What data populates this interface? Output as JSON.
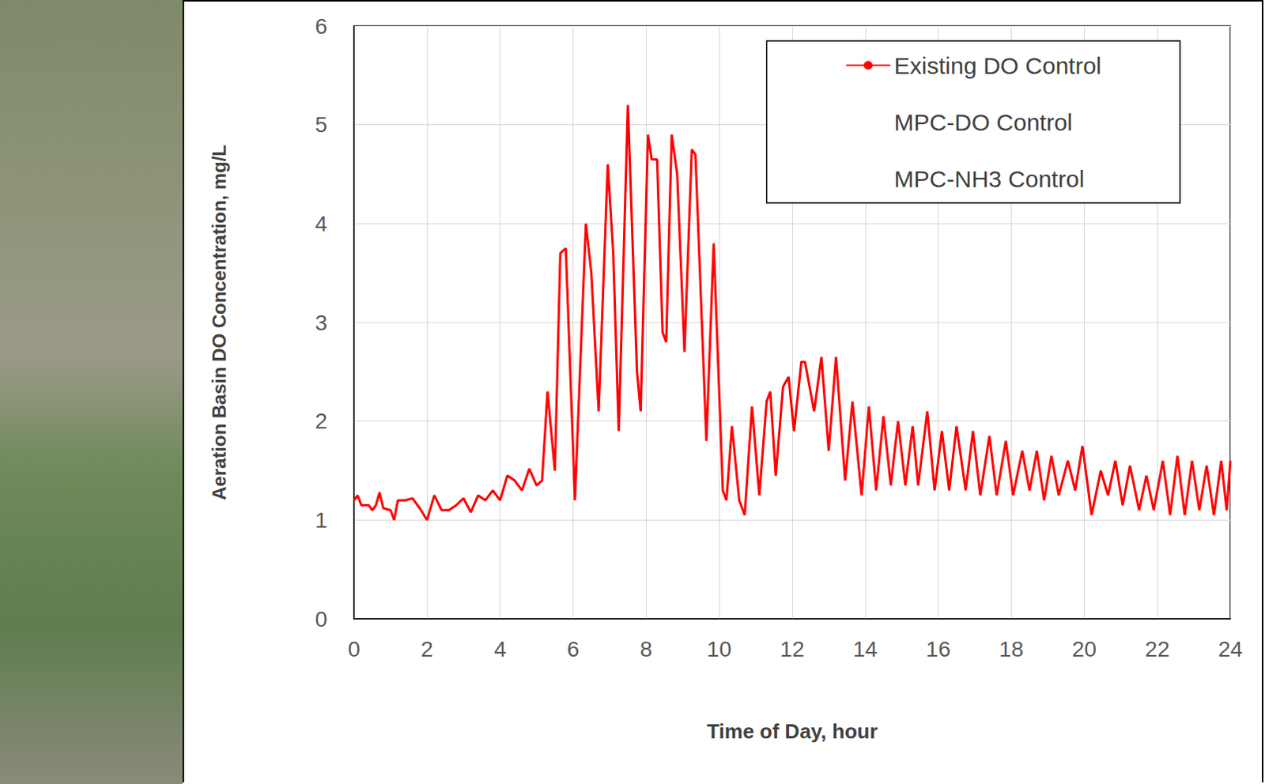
{
  "chart_data": {
    "type": "line",
    "x_label": "Time of Day, hour",
    "y_label": "Aeration Basin DO Concentration, mg/L",
    "x": [
      0,
      0.1,
      0.2,
      0.4,
      0.5,
      0.6,
      0.7,
      0.8,
      1.0,
      1.1,
      1.2,
      1.4,
      1.6,
      1.8,
      2.0,
      2.2,
      2.4,
      2.6,
      2.8,
      3.0,
      3.2,
      3.4,
      3.6,
      3.8,
      4.0,
      4.2,
      4.4,
      4.6,
      4.8,
      5.0,
      5.15,
      5.3,
      5.5,
      5.65,
      5.8,
      6.05,
      6.35,
      6.5,
      6.7,
      6.95,
      7.1,
      7.25,
      7.5,
      7.75,
      7.85,
      8.05,
      8.15,
      8.3,
      8.45,
      8.55,
      8.7,
      8.85,
      9.05,
      9.25,
      9.35,
      9.65,
      9.85,
      10.1,
      10.2,
      10.35,
      10.55,
      10.7,
      10.9,
      11.1,
      11.3,
      11.4,
      11.55,
      11.75,
      11.9,
      12.05,
      12.25,
      12.35,
      12.6,
      12.8,
      13.0,
      13.2,
      13.45,
      13.65,
      13.9,
      14.1,
      14.3,
      14.5,
      14.7,
      14.9,
      15.1,
      15.3,
      15.45,
      15.7,
      15.9,
      16.1,
      16.3,
      16.5,
      16.75,
      16.95,
      17.15,
      17.4,
      17.6,
      17.85,
      18.05,
      18.3,
      18.5,
      18.7,
      18.9,
      19.1,
      19.3,
      19.55,
      19.75,
      19.95,
      20.2,
      20.45,
      20.65,
      20.85,
      21.05,
      21.25,
      21.5,
      21.7,
      21.9,
      22.15,
      22.35,
      22.55,
      22.75,
      22.95,
      23.15,
      23.35,
      23.55,
      23.75,
      23.9,
      24.0
    ],
    "series": [
      {
        "name": "Existing DO Control",
        "color": "#ff0000",
        "values": [
          1.2,
          1.25,
          1.15,
          1.15,
          1.1,
          1.15,
          1.28,
          1.12,
          1.1,
          1.0,
          1.2,
          1.2,
          1.22,
          1.12,
          1.0,
          1.25,
          1.1,
          1.1,
          1.15,
          1.22,
          1.08,
          1.25,
          1.2,
          1.3,
          1.2,
          1.45,
          1.4,
          1.3,
          1.52,
          1.35,
          1.4,
          2.3,
          1.5,
          3.7,
          3.75,
          1.2,
          4.0,
          3.5,
          2.1,
          4.6,
          3.7,
          1.9,
          5.2,
          2.5,
          2.1,
          4.9,
          4.65,
          4.65,
          2.9,
          2.8,
          4.9,
          4.5,
          2.7,
          4.75,
          4.7,
          1.8,
          3.8,
          1.3,
          1.2,
          1.95,
          1.2,
          1.05,
          2.15,
          1.25,
          2.2,
          2.3,
          1.45,
          2.35,
          2.45,
          1.9,
          2.6,
          2.6,
          2.1,
          2.65,
          1.7,
          2.65,
          1.4,
          2.2,
          1.25,
          2.15,
          1.3,
          2.05,
          1.35,
          2.0,
          1.35,
          1.95,
          1.35,
          2.1,
          1.3,
          1.9,
          1.3,
          1.95,
          1.3,
          1.9,
          1.25,
          1.85,
          1.25,
          1.8,
          1.25,
          1.7,
          1.3,
          1.7,
          1.2,
          1.65,
          1.25,
          1.6,
          1.3,
          1.75,
          1.05,
          1.5,
          1.25,
          1.6,
          1.15,
          1.55,
          1.1,
          1.45,
          1.1,
          1.6,
          1.05,
          1.65,
          1.05,
          1.6,
          1.1,
          1.55,
          1.05,
          1.6,
          1.1,
          1.6
        ]
      },
      {
        "name": "MPC-DO Control",
        "color": "#ffffff",
        "values": [
          null,
          null,
          null,
          null,
          null,
          null,
          null,
          null,
          null,
          null,
          null,
          null,
          null,
          null,
          null,
          null,
          null,
          null,
          null,
          null,
          null,
          null,
          null,
          null,
          null,
          null,
          null,
          null,
          null,
          null,
          null,
          null,
          null,
          null,
          null,
          null,
          null,
          null,
          null,
          null,
          null,
          null,
          null,
          null,
          null,
          null,
          null,
          null,
          null,
          null,
          null,
          null,
          null,
          null,
          null,
          null,
          null,
          null,
          null,
          null,
          null,
          null,
          null,
          null,
          null,
          null,
          null,
          null,
          null,
          null,
          null,
          null,
          null,
          null,
          null,
          null,
          null,
          null,
          null,
          null,
          null,
          null,
          null,
          null,
          null,
          null,
          null,
          null,
          null,
          null,
          null,
          null,
          null,
          null,
          null,
          null,
          null,
          null,
          null,
          null,
          null,
          null,
          null,
          null,
          null,
          null,
          null,
          null,
          null,
          null,
          null,
          null,
          null,
          null,
          null,
          null,
          null,
          null,
          null,
          null,
          null,
          null,
          null,
          null,
          null,
          null,
          null,
          null
        ]
      },
      {
        "name": "MPC-NH3 Control",
        "color": "#ffffff",
        "values": [
          null,
          null,
          null,
          null,
          null,
          null,
          null,
          null,
          null,
          null,
          null,
          null,
          null,
          null,
          null,
          null,
          null,
          null,
          null,
          null,
          null,
          null,
          null,
          null,
          null,
          null,
          null,
          null,
          null,
          null,
          null,
          null,
          null,
          null,
          null,
          null,
          null,
          null,
          null,
          null,
          null,
          null,
          null,
          null,
          null,
          null,
          null,
          null,
          null,
          null,
          null,
          null,
          null,
          null,
          null,
          null,
          null,
          null,
          null,
          null,
          null,
          null,
          null,
          null,
          null,
          null,
          null,
          null,
          null,
          null,
          null,
          null,
          null,
          null,
          null,
          null,
          null,
          null,
          null,
          null,
          null,
          null,
          null,
          null,
          null,
          null,
          null,
          null,
          null,
          null,
          null,
          null,
          null,
          null,
          null,
          null,
          null,
          null,
          null,
          null,
          null,
          null,
          null,
          null,
          null,
          null,
          null,
          null,
          null,
          null,
          null,
          null,
          null,
          null,
          null,
          null,
          null,
          null,
          null,
          null,
          null,
          null,
          null,
          null,
          null,
          null,
          null,
          null
        ]
      }
    ],
    "xlim": [
      0,
      24
    ],
    "xticks": [
      0,
      2,
      4,
      6,
      8,
      10,
      12,
      14,
      16,
      18,
      20,
      22,
      24
    ],
    "ylim": [
      0,
      6
    ],
    "yticks": [
      0,
      1,
      2,
      3,
      4,
      5,
      6
    ],
    "grid": true,
    "legend": "upper right"
  }
}
